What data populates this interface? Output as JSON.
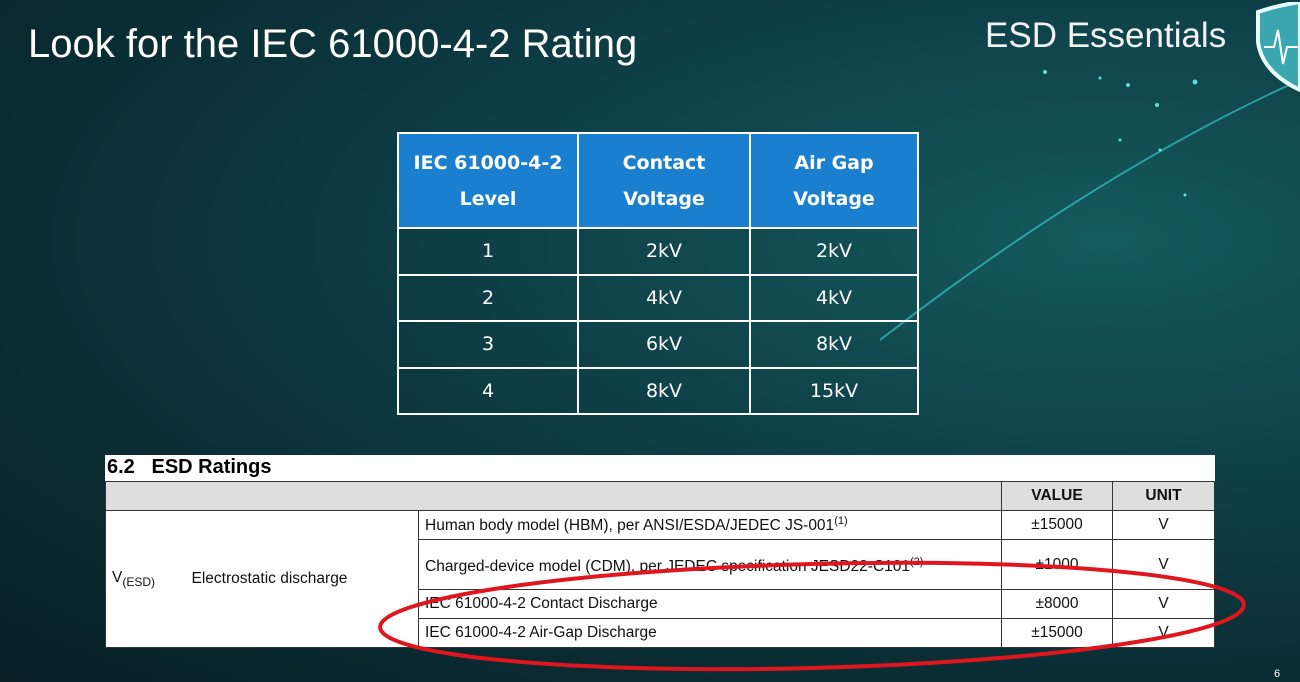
{
  "slide": {
    "title": "Look for the IEC 61000-4-2 Rating",
    "brand": "ESD Essentials",
    "page_number": "6"
  },
  "iec_table": {
    "headers": [
      [
        "IEC 61000-4-2",
        "Level"
      ],
      [
        "Contact",
        "Voltage"
      ],
      [
        "Air Gap",
        "Voltage"
      ]
    ],
    "rows": [
      [
        "1",
        "2kV",
        "2kV"
      ],
      [
        "2",
        "4kV",
        "4kV"
      ],
      [
        "3",
        "6kV",
        "8kV"
      ],
      [
        "4",
        "8kV",
        "15kV"
      ]
    ],
    "header_color": "#1a7fce"
  },
  "esd_ratings": {
    "heading": "6.2   ESD Ratings",
    "headers": {
      "value": "VALUE",
      "unit": "UNIT"
    },
    "symbol": "V",
    "symbol_sub": "(ESD)",
    "parameter": "Electrostatic discharge",
    "rows": [
      {
        "condition": "Human body model (HBM), per ANSI/ESDA/JEDEC JS-001",
        "note": "(1)",
        "value": "±15000",
        "unit": "V"
      },
      {
        "condition": "Charged-device model (CDM), per JEDEC specification JESD22-C101",
        "note": "(2)",
        "value": "±1000",
        "unit": "V"
      },
      {
        "condition": "IEC 61000-4-2 Contact Discharge",
        "note": "",
        "value": "±8000",
        "unit": "V"
      },
      {
        "condition": "IEC 61000-4-2 Air-Gap Discharge",
        "note": "",
        "value": "±15000",
        "unit": "V"
      }
    ],
    "highlight_color": "#e0161e"
  }
}
